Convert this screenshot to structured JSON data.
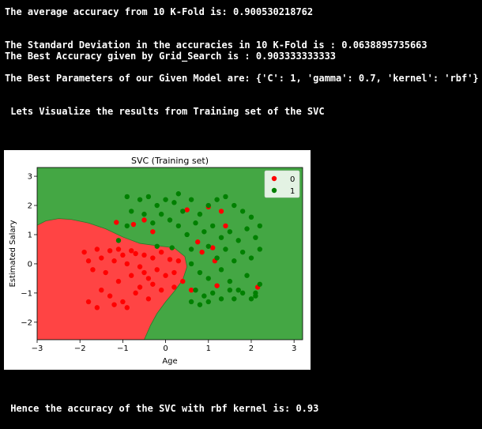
{
  "console": {
    "line1": "The average accuracy from 10 K-Fold is: 0.900530218762",
    "line2": "The Standard Deviation in the accuracies in 10 K-Fold is : 0.0638895735663",
    "line3": "The Best Accuracy given by Grid_Search is : 0.903333333333",
    "line4": "The Best Parameters of our Given Model are: {'C': 1, 'gamma': 0.7, 'kernel': 'rbf'}",
    "line5": " Lets Visualize the results from Training set of the SVC",
    "line6": " Hence the accuracy of the SVC with rbf kernel is: 0.93"
  },
  "chart_data": {
    "type": "scatter",
    "title": "SVC (Training set)",
    "xlabel": "Age",
    "ylabel": "Estimated Salary",
    "xlim": [
      -3,
      3.2
    ],
    "ylim": [
      -2.6,
      3.3
    ],
    "xticks": [
      -3,
      -2,
      -1,
      0,
      1,
      2,
      3
    ],
    "yticks": [
      -2,
      -1,
      0,
      1,
      2,
      3
    ],
    "grid": false,
    "legend": "top-right",
    "region_colors": {
      "0": "#ff4444",
      "1": "#44a744"
    },
    "point_colors": {
      "0": "#ff0000",
      "1": "#008000"
    },
    "decision_boundary": [
      [
        -3.0,
        1.32
      ],
      [
        -2.8,
        1.47
      ],
      [
        -2.5,
        1.55
      ],
      [
        -2.2,
        1.52
      ],
      [
        -1.8,
        1.4
      ],
      [
        -1.4,
        1.2
      ],
      [
        -1.0,
        0.92
      ],
      [
        -0.6,
        0.7
      ],
      [
        -0.2,
        0.62
      ],
      [
        0.2,
        0.55
      ],
      [
        0.45,
        0.25
      ],
      [
        0.5,
        -0.1
      ],
      [
        0.4,
        -0.55
      ],
      [
        0.2,
        -0.95
      ],
      [
        0.0,
        -1.3
      ],
      [
        -0.2,
        -1.7
      ],
      [
        -0.35,
        -2.1
      ],
      [
        -0.5,
        -2.6
      ]
    ],
    "series": [
      {
        "name": "0",
        "points": [
          [
            -1.9,
            0.4
          ],
          [
            -1.8,
            0.1
          ],
          [
            -1.7,
            -0.2
          ],
          [
            -1.6,
            0.5
          ],
          [
            -1.5,
            0.2
          ],
          [
            -1.4,
            -0.3
          ],
          [
            -1.3,
            0.45
          ],
          [
            -1.2,
            0.1
          ],
          [
            -1.1,
            -0.6
          ],
          [
            -1.0,
            0.3
          ],
          [
            -0.9,
            0.0
          ],
          [
            -0.8,
            -0.4
          ],
          [
            -0.7,
            0.35
          ],
          [
            -0.6,
            -0.1
          ],
          [
            -0.5,
            0.3
          ],
          [
            -0.4,
            -0.5
          ],
          [
            -0.3,
            0.2
          ],
          [
            -0.2,
            -0.2
          ],
          [
            -0.1,
            0.4
          ],
          [
            0.0,
            -0.4
          ],
          [
            0.1,
            0.15
          ],
          [
            0.2,
            -0.3
          ],
          [
            0.3,
            0.1
          ],
          [
            0.4,
            -0.6
          ],
          [
            -1.5,
            -0.9
          ],
          [
            -1.3,
            -1.1
          ],
          [
            -1.0,
            -1.3
          ],
          [
            -0.7,
            -1.0
          ],
          [
            -0.4,
            -1.2
          ],
          [
            -0.1,
            -0.9
          ],
          [
            -1.8,
            -1.3
          ],
          [
            -1.6,
            -1.5
          ],
          [
            -1.2,
            -1.4
          ],
          [
            -0.9,
            -1.5
          ],
          [
            -0.6,
            -0.8
          ],
          [
            -0.3,
            -0.7
          ],
          [
            0.2,
            -0.8
          ],
          [
            -1.1,
            0.5
          ],
          [
            -0.8,
            0.45
          ],
          [
            -0.5,
            -0.3
          ],
          [
            -1.15,
            1.42
          ],
          [
            -0.75,
            1.35
          ],
          [
            -0.5,
            1.5
          ],
          [
            -0.3,
            1.1
          ],
          [
            0.5,
            1.85
          ],
          [
            1.0,
            1.95
          ],
          [
            1.3,
            1.8
          ],
          [
            1.4,
            1.3
          ],
          [
            0.75,
            0.75
          ],
          [
            1.1,
            0.55
          ],
          [
            1.15,
            0.1
          ],
          [
            1.2,
            -0.75
          ],
          [
            0.6,
            -0.9
          ],
          [
            2.15,
            -0.8
          ],
          [
            0.85,
            0.4
          ]
        ]
      },
      {
        "name": "1",
        "points": [
          [
            -0.9,
            2.3
          ],
          [
            -0.6,
            2.2
          ],
          [
            -0.4,
            2.3
          ],
          [
            -0.2,
            2.0
          ],
          [
            0.0,
            2.2
          ],
          [
            0.2,
            2.1
          ],
          [
            0.4,
            1.8
          ],
          [
            0.6,
            2.2
          ],
          [
            0.8,
            1.7
          ],
          [
            1.0,
            2.0
          ],
          [
            1.2,
            2.2
          ],
          [
            1.4,
            2.3
          ],
          [
            1.6,
            2.0
          ],
          [
            1.8,
            1.8
          ],
          [
            2.0,
            1.6
          ],
          [
            2.2,
            1.3
          ],
          [
            -0.8,
            1.8
          ],
          [
            -0.5,
            1.7
          ],
          [
            -0.3,
            1.4
          ],
          [
            0.1,
            1.5
          ],
          [
            0.3,
            1.3
          ],
          [
            0.5,
            1.0
          ],
          [
            0.7,
            1.4
          ],
          [
            0.9,
            1.1
          ],
          [
            1.1,
            1.3
          ],
          [
            1.3,
            0.9
          ],
          [
            1.5,
            1.1
          ],
          [
            1.7,
            0.8
          ],
          [
            1.9,
            1.2
          ],
          [
            2.1,
            0.9
          ],
          [
            1.0,
            0.6
          ],
          [
            1.2,
            0.2
          ],
          [
            1.4,
            0.5
          ],
          [
            1.6,
            0.1
          ],
          [
            1.8,
            0.4
          ],
          [
            2.0,
            0.2
          ],
          [
            2.2,
            0.5
          ],
          [
            0.6,
            0.0
          ],
          [
            0.8,
            -0.3
          ],
          [
            1.0,
            -0.5
          ],
          [
            1.3,
            -0.2
          ],
          [
            1.5,
            -0.6
          ],
          [
            1.7,
            -0.9
          ],
          [
            1.9,
            -0.4
          ],
          [
            2.1,
            -1.1
          ],
          [
            2.2,
            -0.7
          ],
          [
            0.7,
            -0.9
          ],
          [
            0.9,
            -1.1
          ],
          [
            1.1,
            -1.0
          ],
          [
            1.3,
            -1.2
          ],
          [
            1.5,
            -0.9
          ],
          [
            1.8,
            -1.0
          ],
          [
            2.0,
            -1.2
          ],
          [
            0.6,
            -1.3
          ],
          [
            0.8,
            -1.4
          ],
          [
            1.0,
            -1.3
          ],
          [
            2.1,
            -1.0
          ],
          [
            1.6,
            -1.2
          ],
          [
            -0.1,
            1.7
          ],
          [
            0.3,
            2.4
          ],
          [
            -1.1,
            0.8
          ],
          [
            -0.9,
            1.3
          ],
          [
            0.15,
            0.55
          ],
          [
            0.6,
            0.5
          ],
          [
            -0.2,
            0.6
          ]
        ]
      }
    ]
  }
}
